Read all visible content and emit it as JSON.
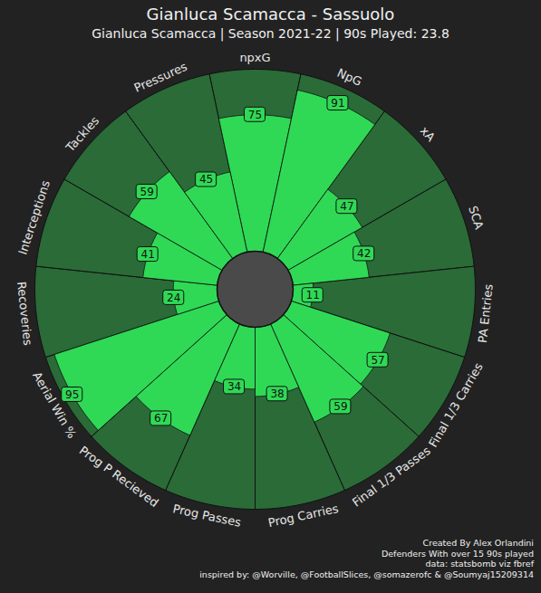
{
  "chart_data": {
    "type": "pizza",
    "title": "Gianluca Scamacca - Sassuolo",
    "subtitle": "Gianluca Scamacca | Season 2021-22 | 90s Played: 23.8",
    "categories": [
      "npxG",
      "NpG",
      "xA",
      "SCA",
      "PA Entries",
      "Final 1/3 Carries",
      "Final 1/3 Passes",
      "Prog Carries",
      "Prog Passes",
      "Prog P Recieved",
      "Aerial Win %",
      "Recoveries",
      "Interceptions",
      "Tackles",
      "Pressures"
    ],
    "values": [
      75,
      91,
      47,
      42,
      11,
      57,
      59,
      38,
      34,
      67,
      95,
      24,
      41,
      59,
      45
    ],
    "rlim": [
      0,
      100
    ],
    "color": "#2fd955",
    "data_labels": true,
    "annotations": [
      "Created By Alex Orlandini",
      "Defenders With over 15 90s played ",
      "data: statsbomb viz fbref",
      "inspired by: @Worville, @FootballSlices, @somazerofc & @Soumyaj15209314"
    ]
  }
}
